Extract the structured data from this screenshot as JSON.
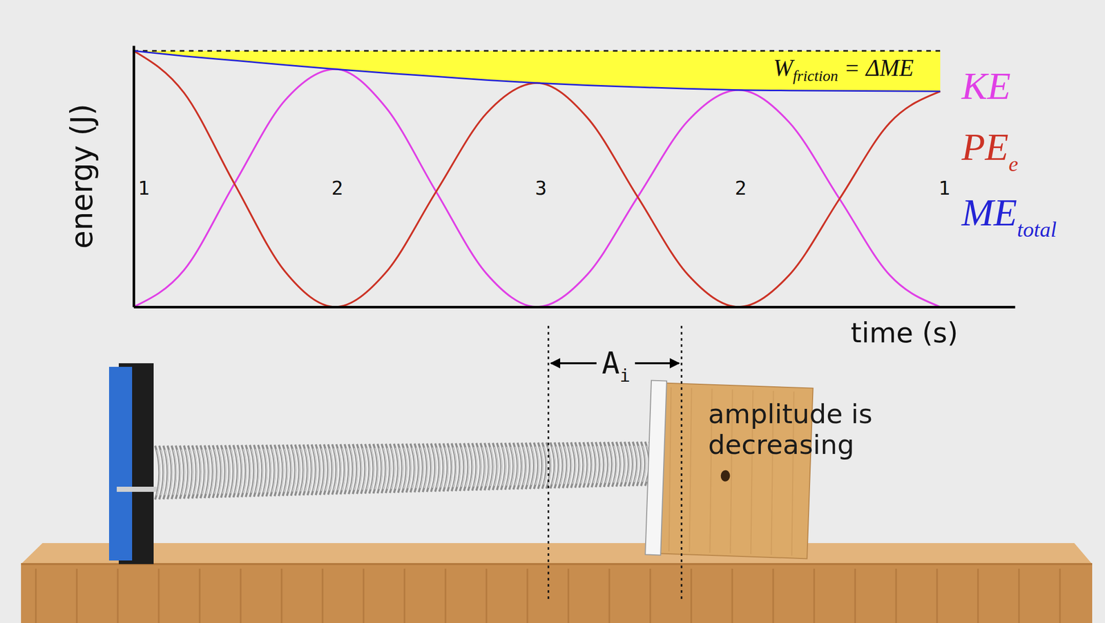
{
  "chart_data": {
    "type": "line",
    "x_label": "time (s)",
    "y_label": "energy (J)",
    "x": [
      0,
      0.25,
      0.5,
      0.75,
      1,
      1.25,
      1.5,
      1.75,
      2,
      2.25,
      2.5,
      2.75,
      3,
      3.25,
      3.5,
      3.75,
      4
    ],
    "xlim": [
      0,
      4.37
    ],
    "ylim": [
      0,
      10
    ],
    "xticks": [],
    "yticks": [],
    "tick_labels": false,
    "legend": "right",
    "series": [
      {
        "name": "KE",
        "color": "#e040e6",
        "values": [
          0,
          1.41,
          4.72,
          7.9,
          9.1,
          7.64,
          4.41,
          1.27,
          0,
          1.24,
          4.21,
          7.13,
          8.3,
          7.07,
          4.14,
          1.21,
          0
        ]
      },
      {
        "name": "PE",
        "subscript": "e",
        "color": "#cc3326",
        "values": [
          9.8,
          8.19,
          4.71,
          1.36,
          0,
          1.31,
          4.41,
          7.41,
          8.57,
          7.24,
          4.2,
          1.22,
          0,
          1.21,
          4.13,
          7.05,
          8.25
        ]
      },
      {
        "name": "ME",
        "subscript": "total",
        "color": "#2424d6",
        "values": [
          9.8,
          9.6,
          9.43,
          9.26,
          9.1,
          8.95,
          8.82,
          8.68,
          8.57,
          8.48,
          8.41,
          8.35,
          8.3,
          8.28,
          8.27,
          8.26,
          8.25
        ]
      }
    ],
    "reference": {
      "series": "ME",
      "value": 9.8,
      "line_style": "dashed",
      "color": "#ffff3c"
    },
    "annotations": [
      {
        "text": "W",
        "subscript": "friction",
        "tail": " = ΔME",
        "x": 3.52,
        "y": 8.84
      },
      {
        "text": "1",
        "x": 0.05,
        "y": 4.3
      },
      {
        "text": "2",
        "x": 1.01,
        "y": 4.3
      },
      {
        "text": "3",
        "x": 2.02,
        "y": 4.3
      },
      {
        "text": "2",
        "x": 3.01,
        "y": 4.3
      },
      {
        "text": "1",
        "x": 4.02,
        "y": 4.3
      }
    ]
  },
  "scene": {
    "amplitude": {
      "text": "A",
      "subscript": "i"
    },
    "caption": [
      "amplitude is",
      "decreasing"
    ]
  }
}
